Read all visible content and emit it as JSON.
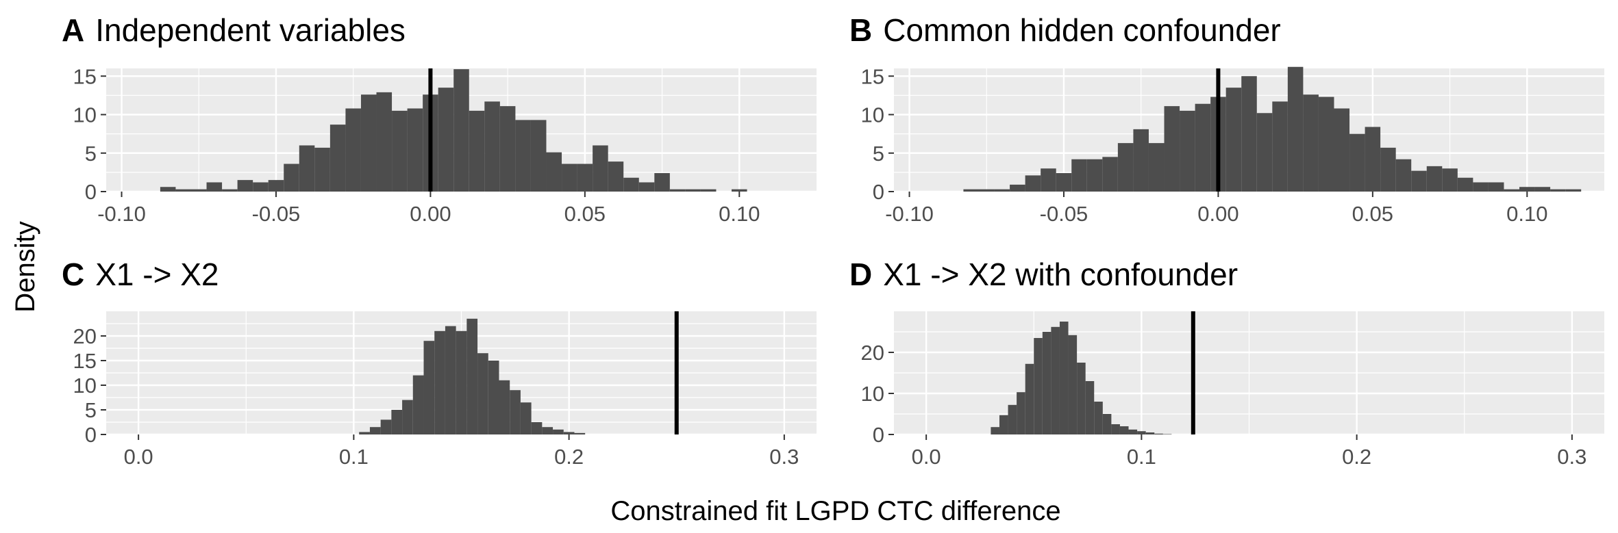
{
  "figure": {
    "ylabel": "Density",
    "xlabel": "Constrained fit LGPD CTC difference"
  },
  "colors": {
    "panel_bg": "#ebebeb",
    "grid_major": "#ffffff",
    "bar_fill": "#4d4d4d",
    "ref_line": "#000000",
    "tick_text": "#4d4d4d"
  },
  "chart_data": [
    {
      "type": "bar",
      "panel": "A",
      "title": "Independent variables",
      "xlim": [
        -0.105,
        0.125
      ],
      "ylim": [
        0,
        16
      ],
      "xticks": [
        -0.1,
        -0.05,
        0.0,
        0.05,
        0.1
      ],
      "xtick_labels": [
        "-0.10",
        "-0.05",
        "0.00",
        "0.05",
        "0.10"
      ],
      "yticks": [
        0,
        5,
        10,
        15
      ],
      "ytick_labels": [
        "0",
        "5",
        "10",
        "15"
      ],
      "reference_line": 0.0,
      "bin_width": 0.005,
      "bin_start": -0.0875,
      "values": [
        0.6,
        0.3,
        0.3,
        1.2,
        0.3,
        1.5,
        1.2,
        1.5,
        3.6,
        6.0,
        5.7,
        8.7,
        10.8,
        12.6,
        12.9,
        10.5,
        10.8,
        12.6,
        13.5,
        15.9,
        10.5,
        11.7,
        11.1,
        9.3,
        9.3,
        5.1,
        3.6,
        3.6,
        6.0,
        3.9,
        1.8,
        1.2,
        2.4,
        0.3,
        0.3,
        0.3,
        0.0,
        0.3
      ]
    },
    {
      "type": "bar",
      "panel": "B",
      "title": "Common hidden confounder",
      "xlim": [
        -0.105,
        0.125
      ],
      "ylim": [
        0,
        16
      ],
      "xticks": [
        -0.1,
        -0.05,
        0.0,
        0.05,
        0.1
      ],
      "xtick_labels": [
        "-0.10",
        "-0.05",
        "0.00",
        "0.05",
        "0.10"
      ],
      "yticks": [
        0,
        5,
        10,
        15
      ],
      "ytick_labels": [
        "0",
        "5",
        "10",
        "15"
      ],
      "reference_line": 0.0,
      "bin_width": 0.005,
      "bin_start": -0.0875,
      "values": [
        0.0,
        0.3,
        0.3,
        0.3,
        0.9,
        2.1,
        3.0,
        2.4,
        4.2,
        4.2,
        4.5,
        6.3,
        8.1,
        6.3,
        11.1,
        10.5,
        11.4,
        12.3,
        13.5,
        15.0,
        10.2,
        11.7,
        16.2,
        12.6,
        12.3,
        10.8,
        7.5,
        8.4,
        5.7,
        4.2,
        2.7,
        3.3,
        3.0,
        1.8,
        1.2,
        1.2,
        0.3,
        0.6,
        0.6,
        0.3,
        0.3,
        0.0,
        0.0,
        0.0,
        0.0,
        0.0,
        0.0,
        0.0,
        0.3
      ]
    },
    {
      "type": "bar",
      "panel": "C",
      "title": "X1 -> X2",
      "xlim": [
        -0.015,
        0.315
      ],
      "ylim": [
        0,
        25
      ],
      "xticks": [
        0.0,
        0.1,
        0.2,
        0.3
      ],
      "xtick_labels": [
        "0.0",
        "0.1",
        "0.2",
        "0.3"
      ],
      "yticks": [
        0,
        5,
        10,
        15,
        20
      ],
      "ytick_labels": [
        "0",
        "5",
        "10",
        "15",
        "20"
      ],
      "reference_line": 0.25,
      "bin_width": 0.005,
      "bin_start": 0.1025,
      "values": [
        0.5,
        1.5,
        3.0,
        5.0,
        7.0,
        12.0,
        19.0,
        21.0,
        22.0,
        21.0,
        23.5,
        16.5,
        15.0,
        11.0,
        9.0,
        6.5,
        2.5,
        1.5,
        1.0,
        0.5,
        0.3
      ]
    },
    {
      "type": "bar",
      "panel": "D",
      "title": "X1 -> X2 with confounder",
      "xlim": [
        -0.015,
        0.315
      ],
      "ylim": [
        0,
        30
      ],
      "xticks": [
        0.0,
        0.1,
        0.2,
        0.3
      ],
      "xtick_labels": [
        "0.0",
        "0.1",
        "0.2",
        "0.3"
      ],
      "yticks": [
        0,
        10,
        20
      ],
      "ytick_labels": [
        "0",
        "10",
        "20"
      ],
      "reference_line": 0.124,
      "bin_width": 0.004,
      "bin_start": 0.03,
      "values": [
        1.8,
        4.7,
        7.2,
        10.3,
        17.2,
        23.5,
        25.0,
        26.2,
        27.5,
        24.2,
        17.5,
        13.0,
        8.0,
        5.0,
        2.5,
        2.0,
        1.2,
        0.8,
        0.5,
        0.2,
        0.1
      ]
    }
  ]
}
